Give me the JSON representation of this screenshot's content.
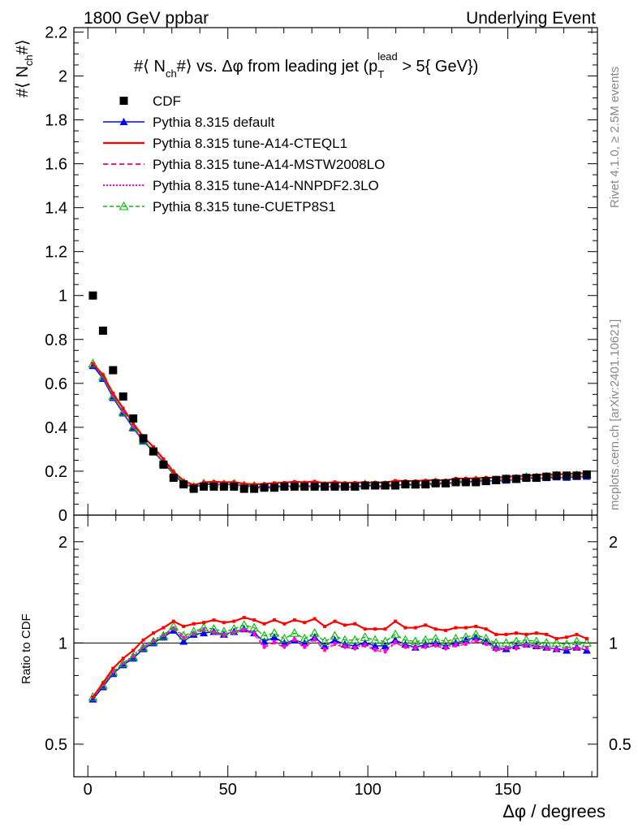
{
  "header": {
    "left": "1800 GeV ppbar",
    "right": "Underlying Event"
  },
  "side_text": {
    "rivet": "Rivet 4.1.0, ≥ 2.5M events",
    "mcplots": "mcplots.cern.ch [arXiv:2401.10621]"
  },
  "colors": {
    "cdf": "#000000",
    "default": "#0000ff",
    "a14_cteql1": "#ff0000",
    "a14_mstw": "#ff1493",
    "a14_nnpdf": "#ff00ff",
    "cuetp8s1": "#00bb00"
  },
  "chart_data": {
    "type": "line",
    "title": "#⟨ N_ch#⟩ vs. Δφ from leading jet  (p_T^lead > 5{ GeV})",
    "title_parts": {
      "pre": "#⟨ N",
      "sub_ch": "ch",
      "mid": "#⟩ vs. Δφ from leading jet  (p",
      "sub_t": "T",
      "sup_lead": "lead",
      "post": " > 5{ GeV})"
    },
    "ylabel_parts": {
      "pre": "#⟨ N",
      "sub": "ch",
      "post": "#⟩"
    },
    "xlabel": "Δφ / degrees",
    "ratio_ylabel": "Ratio to CDF",
    "xlim": [
      -5,
      182
    ],
    "ylim": [
      0,
      2.22
    ],
    "ratio_ylim": [
      0.4,
      2.4
    ],
    "x_ticks": [
      0,
      50,
      100,
      150
    ],
    "y_ticks": [
      0,
      0.2,
      0.4,
      0.6,
      0.8,
      1,
      1.2,
      1.4,
      1.6,
      1.8,
      2,
      2.2
    ],
    "y_tick_labels": [
      "0",
      "0.2",
      "0.4",
      "0.6",
      "0.8",
      "1",
      "1.2",
      "1.4",
      "1.6",
      "1.8",
      "2",
      "2.2"
    ],
    "ratio_ticks": [
      0.5,
      1,
      2
    ],
    "ratio_tick_labels": [
      "0.5",
      "1",
      "2"
    ],
    "x": [
      1.8,
      5.4,
      9.0,
      12.6,
      16.2,
      19.8,
      23.4,
      27.0,
      30.6,
      34.2,
      37.8,
      41.4,
      45.0,
      48.6,
      52.2,
      55.8,
      59.4,
      63.0,
      66.6,
      70.2,
      73.8,
      77.4,
      81.0,
      84.6,
      88.2,
      91.8,
      95.4,
      99.0,
      102.6,
      106.2,
      109.8,
      113.4,
      117.0,
      120.6,
      124.2,
      127.8,
      131.4,
      135.0,
      138.6,
      142.2,
      145.8,
      149.4,
      153.0,
      156.6,
      160.2,
      163.8,
      167.4,
      171.0,
      174.6,
      178.2
    ],
    "cdf": [
      1.0,
      0.84,
      0.66,
      0.54,
      0.44,
      0.35,
      0.29,
      0.23,
      0.17,
      0.14,
      0.12,
      0.13,
      0.13,
      0.13,
      0.13,
      0.12,
      0.12,
      0.125,
      0.125,
      0.13,
      0.13,
      0.13,
      0.13,
      0.13,
      0.13,
      0.13,
      0.13,
      0.135,
      0.135,
      0.135,
      0.135,
      0.14,
      0.14,
      0.14,
      0.145,
      0.145,
      0.15,
      0.15,
      0.15,
      0.155,
      0.16,
      0.165,
      0.165,
      0.17,
      0.17,
      0.175,
      0.18,
      0.18,
      0.18,
      0.185
    ],
    "series": [
      {
        "name": "Pythia 8.315 default",
        "key": "default",
        "marker": "triangle-filled",
        "dash": "",
        "ratio": [
          0.68,
          0.74,
          0.81,
          0.86,
          0.9,
          0.96,
          1.0,
          1.04,
          1.09,
          1.01,
          1.06,
          1.07,
          1.08,
          1.06,
          1.08,
          1.1,
          1.07,
          1.01,
          1.04,
          1.0,
          1.02,
          1.0,
          1.04,
          0.98,
          1.02,
          0.99,
          0.98,
          1.0,
          0.98,
          0.98,
          1.02,
          0.99,
          0.97,
          0.99,
          1.0,
          0.98,
          1.0,
          1.02,
          1.04,
          1.01,
          0.97,
          0.96,
          0.98,
          0.99,
          0.98,
          0.97,
          0.96,
          0.95,
          0.97,
          0.95
        ]
      },
      {
        "name": "Pythia 8.315 tune-A14-CTEQL1",
        "key": "a14_cteql1",
        "marker": "none",
        "dash": "",
        "ratio": [
          0.69,
          0.76,
          0.84,
          0.9,
          0.95,
          1.02,
          1.07,
          1.11,
          1.16,
          1.12,
          1.14,
          1.15,
          1.17,
          1.15,
          1.16,
          1.19,
          1.17,
          1.14,
          1.17,
          1.14,
          1.17,
          1.15,
          1.18,
          1.12,
          1.16,
          1.13,
          1.14,
          1.1,
          1.1,
          1.1,
          1.16,
          1.11,
          1.11,
          1.13,
          1.1,
          1.09,
          1.11,
          1.11,
          1.12,
          1.1,
          1.06,
          1.06,
          1.07,
          1.06,
          1.07,
          1.06,
          1.03,
          1.04,
          1.06,
          1.03
        ]
      },
      {
        "name": "Pythia 8.315 tune-A14-MSTW2008LO",
        "key": "a14_mstw",
        "marker": "circle",
        "dash": "6,4",
        "ratio": [
          0.69,
          0.75,
          0.82,
          0.87,
          0.91,
          0.97,
          1.01,
          1.05,
          1.1,
          1.03,
          1.06,
          1.09,
          1.07,
          1.05,
          1.07,
          1.09,
          1.06,
          0.97,
          1.0,
          0.97,
          1.02,
          0.97,
          1.02,
          0.95,
          0.99,
          0.97,
          0.96,
          0.98,
          0.95,
          0.94,
          1.0,
          0.97,
          0.96,
          0.97,
          0.98,
          0.96,
          0.98,
          0.99,
          1.01,
          0.99,
          0.95,
          0.96,
          0.96,
          0.98,
          0.97,
          0.96,
          0.95,
          0.96,
          0.96,
          0.96
        ]
      },
      {
        "name": "Pythia 8.315 tune-A14-NNPDF2.3LO",
        "key": "a14_nnpdf",
        "marker": "circle",
        "dash": "2,2",
        "ratio": [
          0.69,
          0.75,
          0.82,
          0.87,
          0.92,
          0.98,
          1.02,
          1.06,
          1.11,
          1.04,
          1.07,
          1.1,
          1.08,
          1.06,
          1.08,
          1.1,
          1.07,
          0.98,
          1.01,
          0.98,
          1.03,
          0.98,
          1.03,
          0.96,
          1.0,
          0.98,
          0.97,
          0.99,
          0.96,
          0.95,
          1.01,
          0.98,
          0.97,
          0.98,
          0.99,
          0.97,
          0.99,
          1.0,
          1.02,
          1.0,
          0.96,
          0.97,
          0.97,
          0.99,
          0.98,
          0.97,
          0.96,
          0.97,
          0.97,
          0.97
        ]
      },
      {
        "name": "Pythia 8.315 tune-CUETP8S1",
        "key": "cuetp8s1",
        "marker": "triangle-open",
        "dash": "5,3",
        "ratio": [
          0.69,
          0.75,
          0.82,
          0.87,
          0.91,
          0.97,
          1.01,
          1.05,
          1.12,
          1.05,
          1.08,
          1.11,
          1.1,
          1.08,
          1.1,
          1.13,
          1.11,
          1.05,
          1.07,
          1.03,
          1.07,
          1.03,
          1.07,
          1.01,
          1.05,
          1.02,
          1.02,
          1.04,
          1.02,
          1.01,
          1.06,
          1.02,
          1.01,
          1.02,
          1.03,
          1.01,
          1.03,
          1.04,
          1.06,
          1.03,
          1.0,
          1.0,
          1.01,
          1.02,
          1.01,
          1.0,
          1.0,
          0.99,
          1.01,
          1.0
        ]
      }
    ],
    "legend": [
      "CDF",
      "Pythia 8.315 default",
      "Pythia 8.315 tune-A14-CTEQL1",
      "Pythia 8.315 tune-A14-MSTW2008LO",
      "Pythia 8.315 tune-A14-NNPDF2.3LO",
      "Pythia 8.315 tune-CUETP8S1"
    ]
  }
}
